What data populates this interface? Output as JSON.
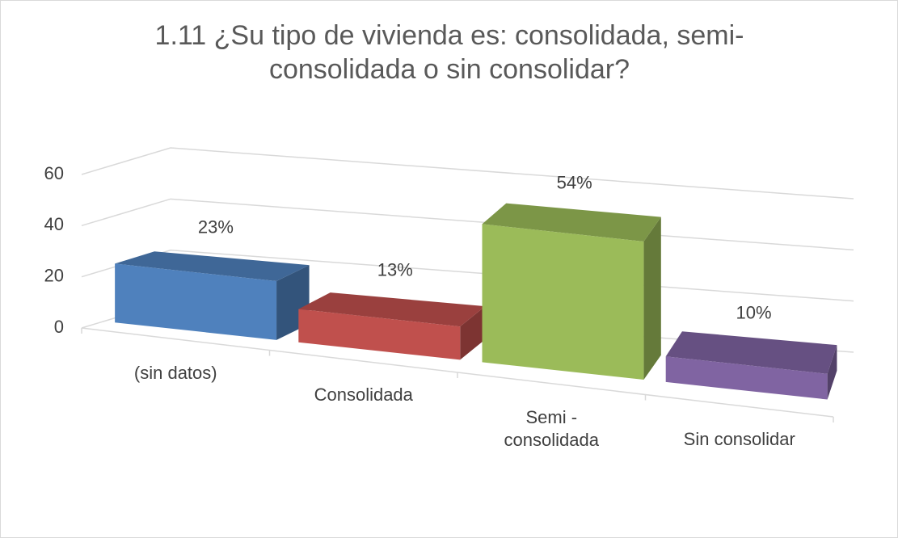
{
  "chart_data": {
    "type": "bar3d",
    "title": "1.11 ¿Su tipo de vivienda es: consolidada, semi-consolidada o sin consolidar?",
    "categories": [
      "(sin datos)",
      "Consolidada",
      "Semi - consolidada",
      "Sin consolidar"
    ],
    "values": [
      23,
      13,
      54,
      10
    ],
    "value_labels": [
      "23%",
      "13%",
      "54%",
      "10%"
    ],
    "colors": [
      "#4f81bd",
      "#c0504d",
      "#9bbb59",
      "#8064a2"
    ],
    "ylim": [
      0,
      60
    ],
    "yticks": [
      0,
      20,
      40,
      60
    ],
    "grid": true
  }
}
